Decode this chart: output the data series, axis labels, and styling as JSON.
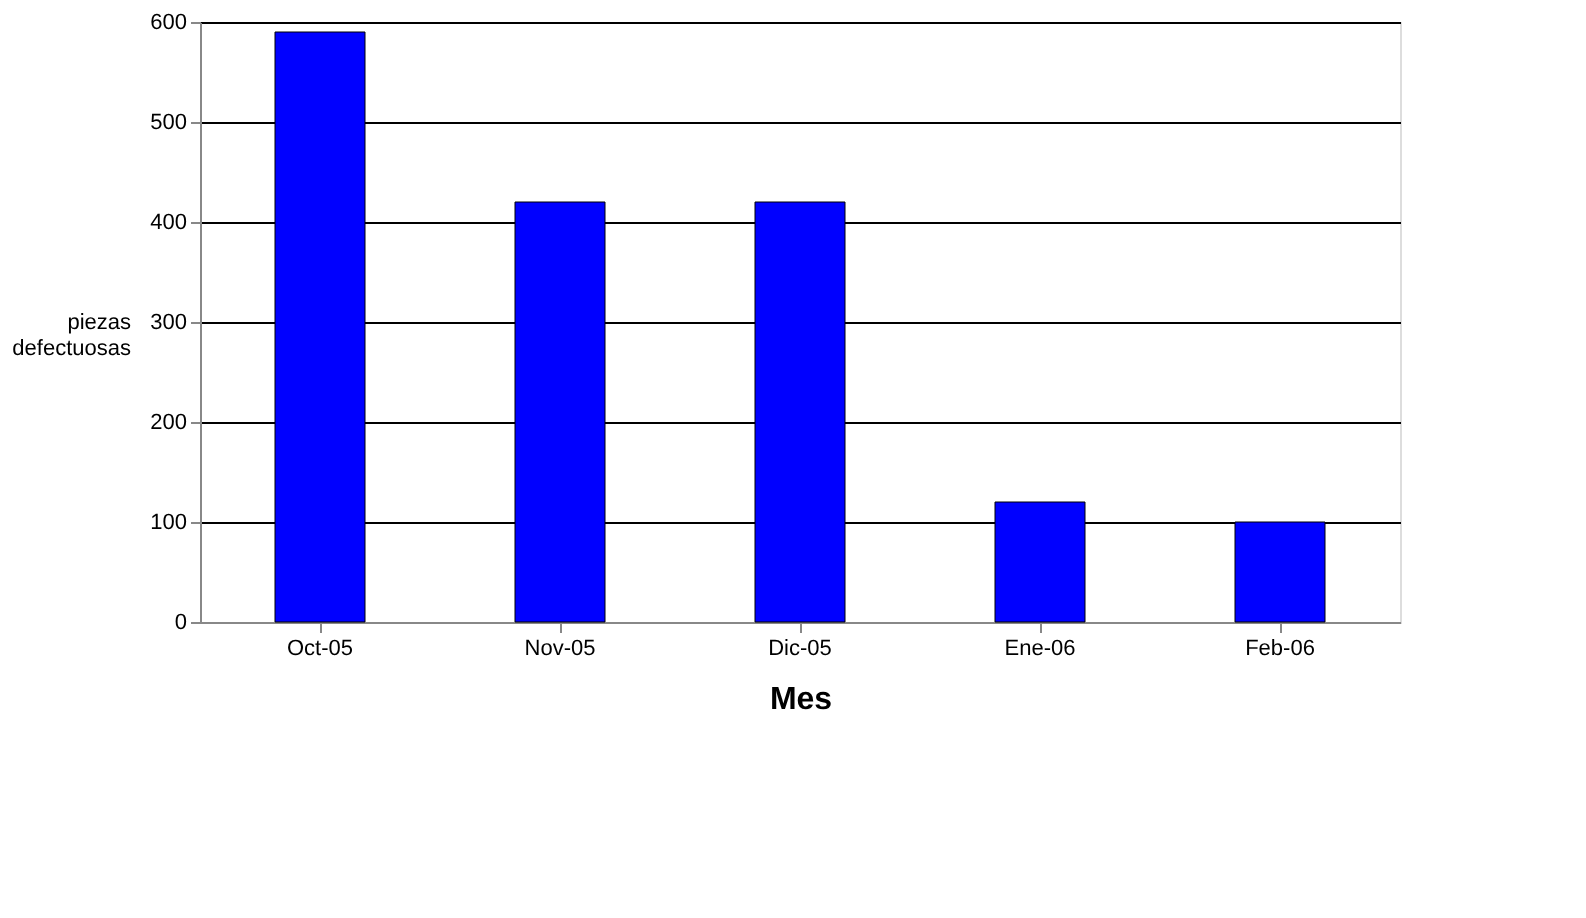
{
  "chart_data": {
    "type": "bar",
    "categories": [
      "Oct-05",
      "Nov-05",
      "Dic-05",
      "Ene-06",
      "Feb-06"
    ],
    "values": [
      590,
      420,
      420,
      120,
      100
    ],
    "color": "#0000ff",
    "xlabel": "Mes",
    "ylabel": "piezas\ndefectuosas",
    "ylim": [
      0,
      600
    ],
    "yticks": [
      0,
      100,
      200,
      300,
      400,
      500,
      600
    ],
    "grid": "y"
  }
}
